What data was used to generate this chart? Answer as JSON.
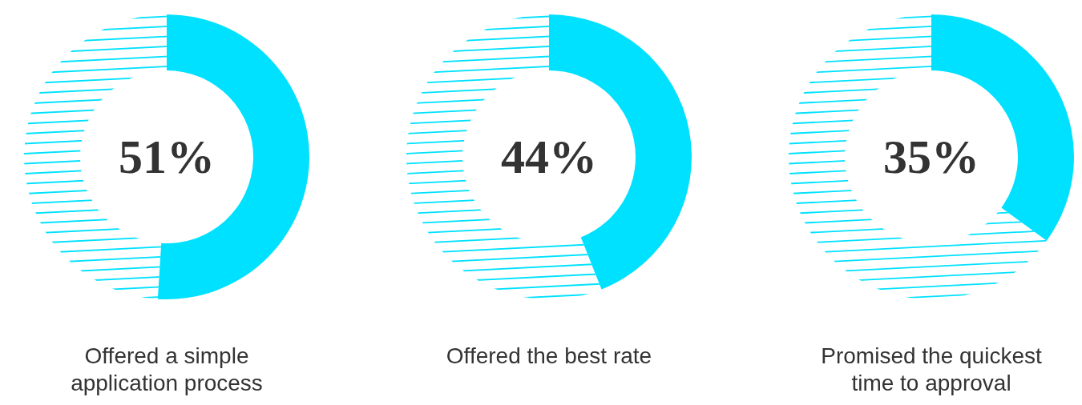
{
  "chart_data": [
    {
      "type": "donut",
      "title": "Offered a simple application process",
      "categories": [
        null,
        null
      ],
      "values": [
        51,
        49
      ],
      "colors": [
        "#00e1ff",
        "#00e1ff"
      ],
      "value_labels": [
        "51%",
        null
      ]
    },
    {
      "type": "donut",
      "title": "Offered the best rate",
      "categories": [
        null,
        null
      ],
      "values": [
        44,
        56
      ],
      "colors": [
        "#00e1ff",
        "#00e1ff"
      ],
      "value_labels": [
        "44%",
        null
      ]
    },
    {
      "type": "donut",
      "title": "Promised the quickest time to approval",
      "categories": [
        null,
        null
      ],
      "values": [
        35,
        65
      ],
      "colors": [
        "#00e1ff",
        "#00e1ff"
      ],
      "value_labels": [
        "35%",
        null
      ]
    }
  ]
}
